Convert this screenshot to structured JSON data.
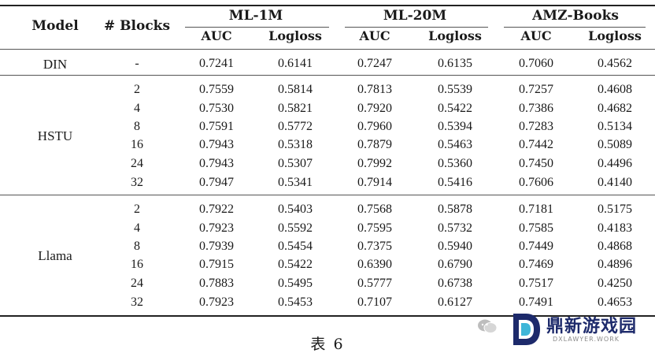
{
  "table": {
    "header": {
      "model": "Model",
      "blocks": "# Blocks",
      "datasets": [
        "ML-1M",
        "ML-20M",
        "AMZ-Books"
      ],
      "metrics": [
        "AUC",
        "Logloss",
        "AUC",
        "Logloss",
        "AUC",
        "Logloss"
      ]
    },
    "groups": [
      {
        "model": "DIN",
        "rows": [
          {
            "blocks": "-",
            "values": [
              "0.7241",
              "0.6141",
              "0.7247",
              "0.6135",
              "0.7060",
              "0.4562"
            ]
          }
        ]
      },
      {
        "model": "HSTU",
        "rows": [
          {
            "blocks": "2",
            "values": [
              "0.7559",
              "0.5814",
              "0.7813",
              "0.5539",
              "0.7257",
              "0.4608"
            ]
          },
          {
            "blocks": "4",
            "values": [
              "0.7530",
              "0.5821",
              "0.7920",
              "0.5422",
              "0.7386",
              "0.4682"
            ]
          },
          {
            "blocks": "8",
            "values": [
              "0.7591",
              "0.5772",
              "0.7960",
              "0.5394",
              "0.7283",
              "0.5134"
            ]
          },
          {
            "blocks": "16",
            "values": [
              "0.7943",
              "0.5318",
              "0.7879",
              "0.5463",
              "0.7442",
              "0.5089"
            ]
          },
          {
            "blocks": "24",
            "values": [
              "0.7943",
              "0.5307",
              "0.7992",
              "0.5360",
              "0.7450",
              "0.4496"
            ]
          },
          {
            "blocks": "32",
            "values": [
              "0.7947",
              "0.5341",
              "0.7914",
              "0.5416",
              "0.7606",
              "0.4140"
            ]
          }
        ]
      },
      {
        "model": "Llama",
        "rows": [
          {
            "blocks": "2",
            "values": [
              "0.7922",
              "0.5403",
              "0.7568",
              "0.5878",
              "0.7181",
              "0.5175"
            ]
          },
          {
            "blocks": "4",
            "values": [
              "0.7923",
              "0.5592",
              "0.7595",
              "0.5732",
              "0.7585",
              "0.4183"
            ]
          },
          {
            "blocks": "8",
            "values": [
              "0.7939",
              "0.5454",
              "0.7375",
              "0.5940",
              "0.7449",
              "0.4868"
            ]
          },
          {
            "blocks": "16",
            "values": [
              "0.7915",
              "0.5422",
              "0.6390",
              "0.6790",
              "0.7469",
              "0.4896"
            ]
          },
          {
            "blocks": "24",
            "values": [
              "0.7883",
              "0.5495",
              "0.5777",
              "0.6738",
              "0.7517",
              "0.4250"
            ]
          },
          {
            "blocks": "32",
            "values": [
              "0.7923",
              "0.5453",
              "0.7107",
              "0.6127",
              "0.7491",
              "0.4653"
            ]
          }
        ]
      }
    ]
  },
  "caption": "表 6",
  "watermark": {
    "icon": "wechat-icon",
    "logo_icon": "dx-logo-icon",
    "name": "鼎新游戏园",
    "domain": "DXLAWYER.WORK",
    "color": "#1d2a6b"
  }
}
